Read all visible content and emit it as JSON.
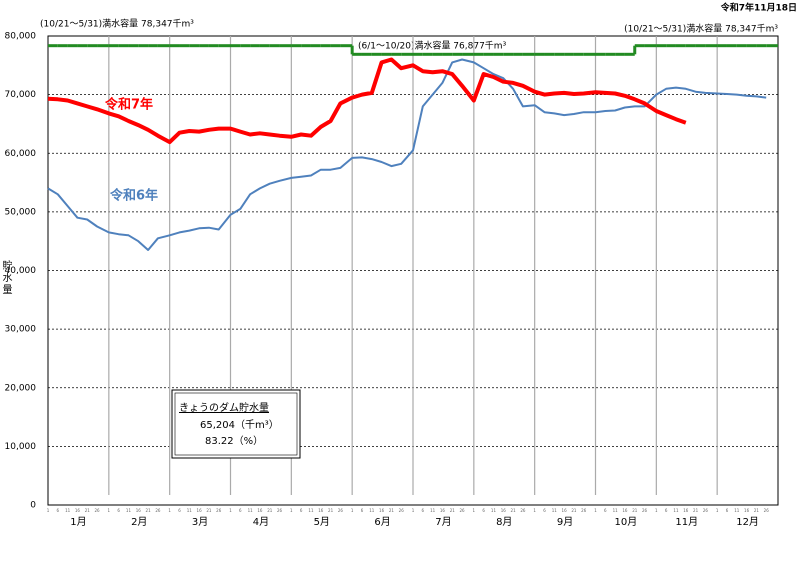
{
  "chart_data": {
    "type": "line",
    "date": "令和7年11月18日",
    "y_label": "貯水量",
    "annotations": {
      "cap_left": "(10/21～5/31)満水容量  78,347千m³",
      "cap_right": "(10/21～5/31)満水容量  78,347千m³",
      "cap_middle": "(6/1～10/20)満水容量  76,877千m³"
    },
    "info_box": {
      "title": "きょうのダム貯水量",
      "volume": "65,204（千m³）",
      "percent": "83.22（%）"
    },
    "months": [
      "1月",
      "2月",
      "3月",
      "4月",
      "5月",
      "6月",
      "7月",
      "8月",
      "9月",
      "10月",
      "11月",
      "12月"
    ],
    "day_ticks": [
      1,
      6,
      11,
      16,
      21,
      26
    ],
    "ylim": [
      0,
      80000
    ],
    "yticks": [
      0,
      {
        "value": 10000,
        "label": "10,000"
      },
      {
        "value": 20000,
        "label": "20,000"
      },
      {
        "value": 30000,
        "label": "30,000"
      },
      {
        "value": 40000,
        "label": "40,000"
      },
      {
        "value": 50000,
        "label": "50,000"
      },
      {
        "value": 60000,
        "label": "60,000"
      },
      {
        "value": 70000,
        "label": "70,000"
      },
      {
        "value": 80000,
        "label": "80,000"
      }
    ],
    "grid": true,
    "series": [
      {
        "name": "令和7年",
        "color": "#ff0000",
        "width": 4,
        "values": [
          69300,
          69200,
          69000,
          68500,
          68000,
          67500,
          66800,
          66300,
          65500,
          64800,
          64000,
          63000,
          61900,
          63500,
          63800,
          63700,
          64000,
          64200,
          64200,
          63700,
          63200,
          63400,
          63200,
          63000,
          62800,
          63200,
          63000,
          64500,
          65500,
          68500,
          69500,
          70000,
          70300,
          75500,
          76000,
          74500,
          75000,
          74000,
          73800,
          74000,
          73500,
          71500,
          69000,
          73500,
          73000,
          72200,
          72000,
          71500,
          70500,
          70000,
          70200,
          70300,
          70100,
          70200,
          70400,
          70300,
          70200,
          69800,
          69200,
          68500,
          67200,
          66500,
          65800,
          65204,
          null,
          null,
          null,
          null,
          null,
          null,
          null,
          null
        ]
      },
      {
        "name": "令和6年",
        "color": "#4f81bd",
        "width": 2,
        "values": [
          54000,
          53000,
          51000,
          49000,
          48700,
          47500,
          46500,
          46200,
          46000,
          45000,
          43500,
          45500,
          46000,
          46500,
          46800,
          47200,
          47300,
          47000,
          49500,
          50500,
          53000,
          54000,
          54800,
          55300,
          55800,
          56000,
          56200,
          57200,
          57200,
          57500,
          59200,
          59300,
          59000,
          58500,
          57800,
          58200,
          60500,
          68000,
          70000,
          72000,
          75500,
          76000,
          75500,
          74500,
          73500,
          72800,
          71000,
          68000,
          68200,
          67000,
          66800,
          66500,
          66700,
          67000,
          67000,
          67200,
          67300,
          67800,
          68000,
          68000,
          70000,
          71000,
          71200,
          71000,
          70500,
          70300,
          70200,
          70100,
          70000,
          69800,
          69700,
          69500
        ]
      }
    ],
    "capacity_line": {
      "color": "#228b22",
      "values": [
        78347,
        78347,
        78347,
        78347,
        78347,
        78347,
        78347,
        78347,
        78347,
        78347,
        78347,
        78347,
        78347,
        78347,
        78347,
        78347,
        78347,
        78347,
        78347,
        78347,
        78347,
        78347,
        78347,
        78347,
        78347,
        78347,
        78347,
        78347,
        78347,
        78347,
        76877,
        76877,
        76877,
        76877,
        76877,
        76877,
        76877,
        76877,
        76877,
        76877,
        76877,
        76877,
        76877,
        76877,
        76877,
        76877,
        76877,
        76877,
        76877,
        76877,
        76877,
        76877,
        76877,
        76877,
        76877,
        76877,
        76877,
        76877,
        78347,
        78347,
        78347,
        78347,
        78347,
        78347,
        78347,
        78347,
        78347,
        78347,
        78347,
        78347,
        78347,
        78347
      ]
    }
  }
}
